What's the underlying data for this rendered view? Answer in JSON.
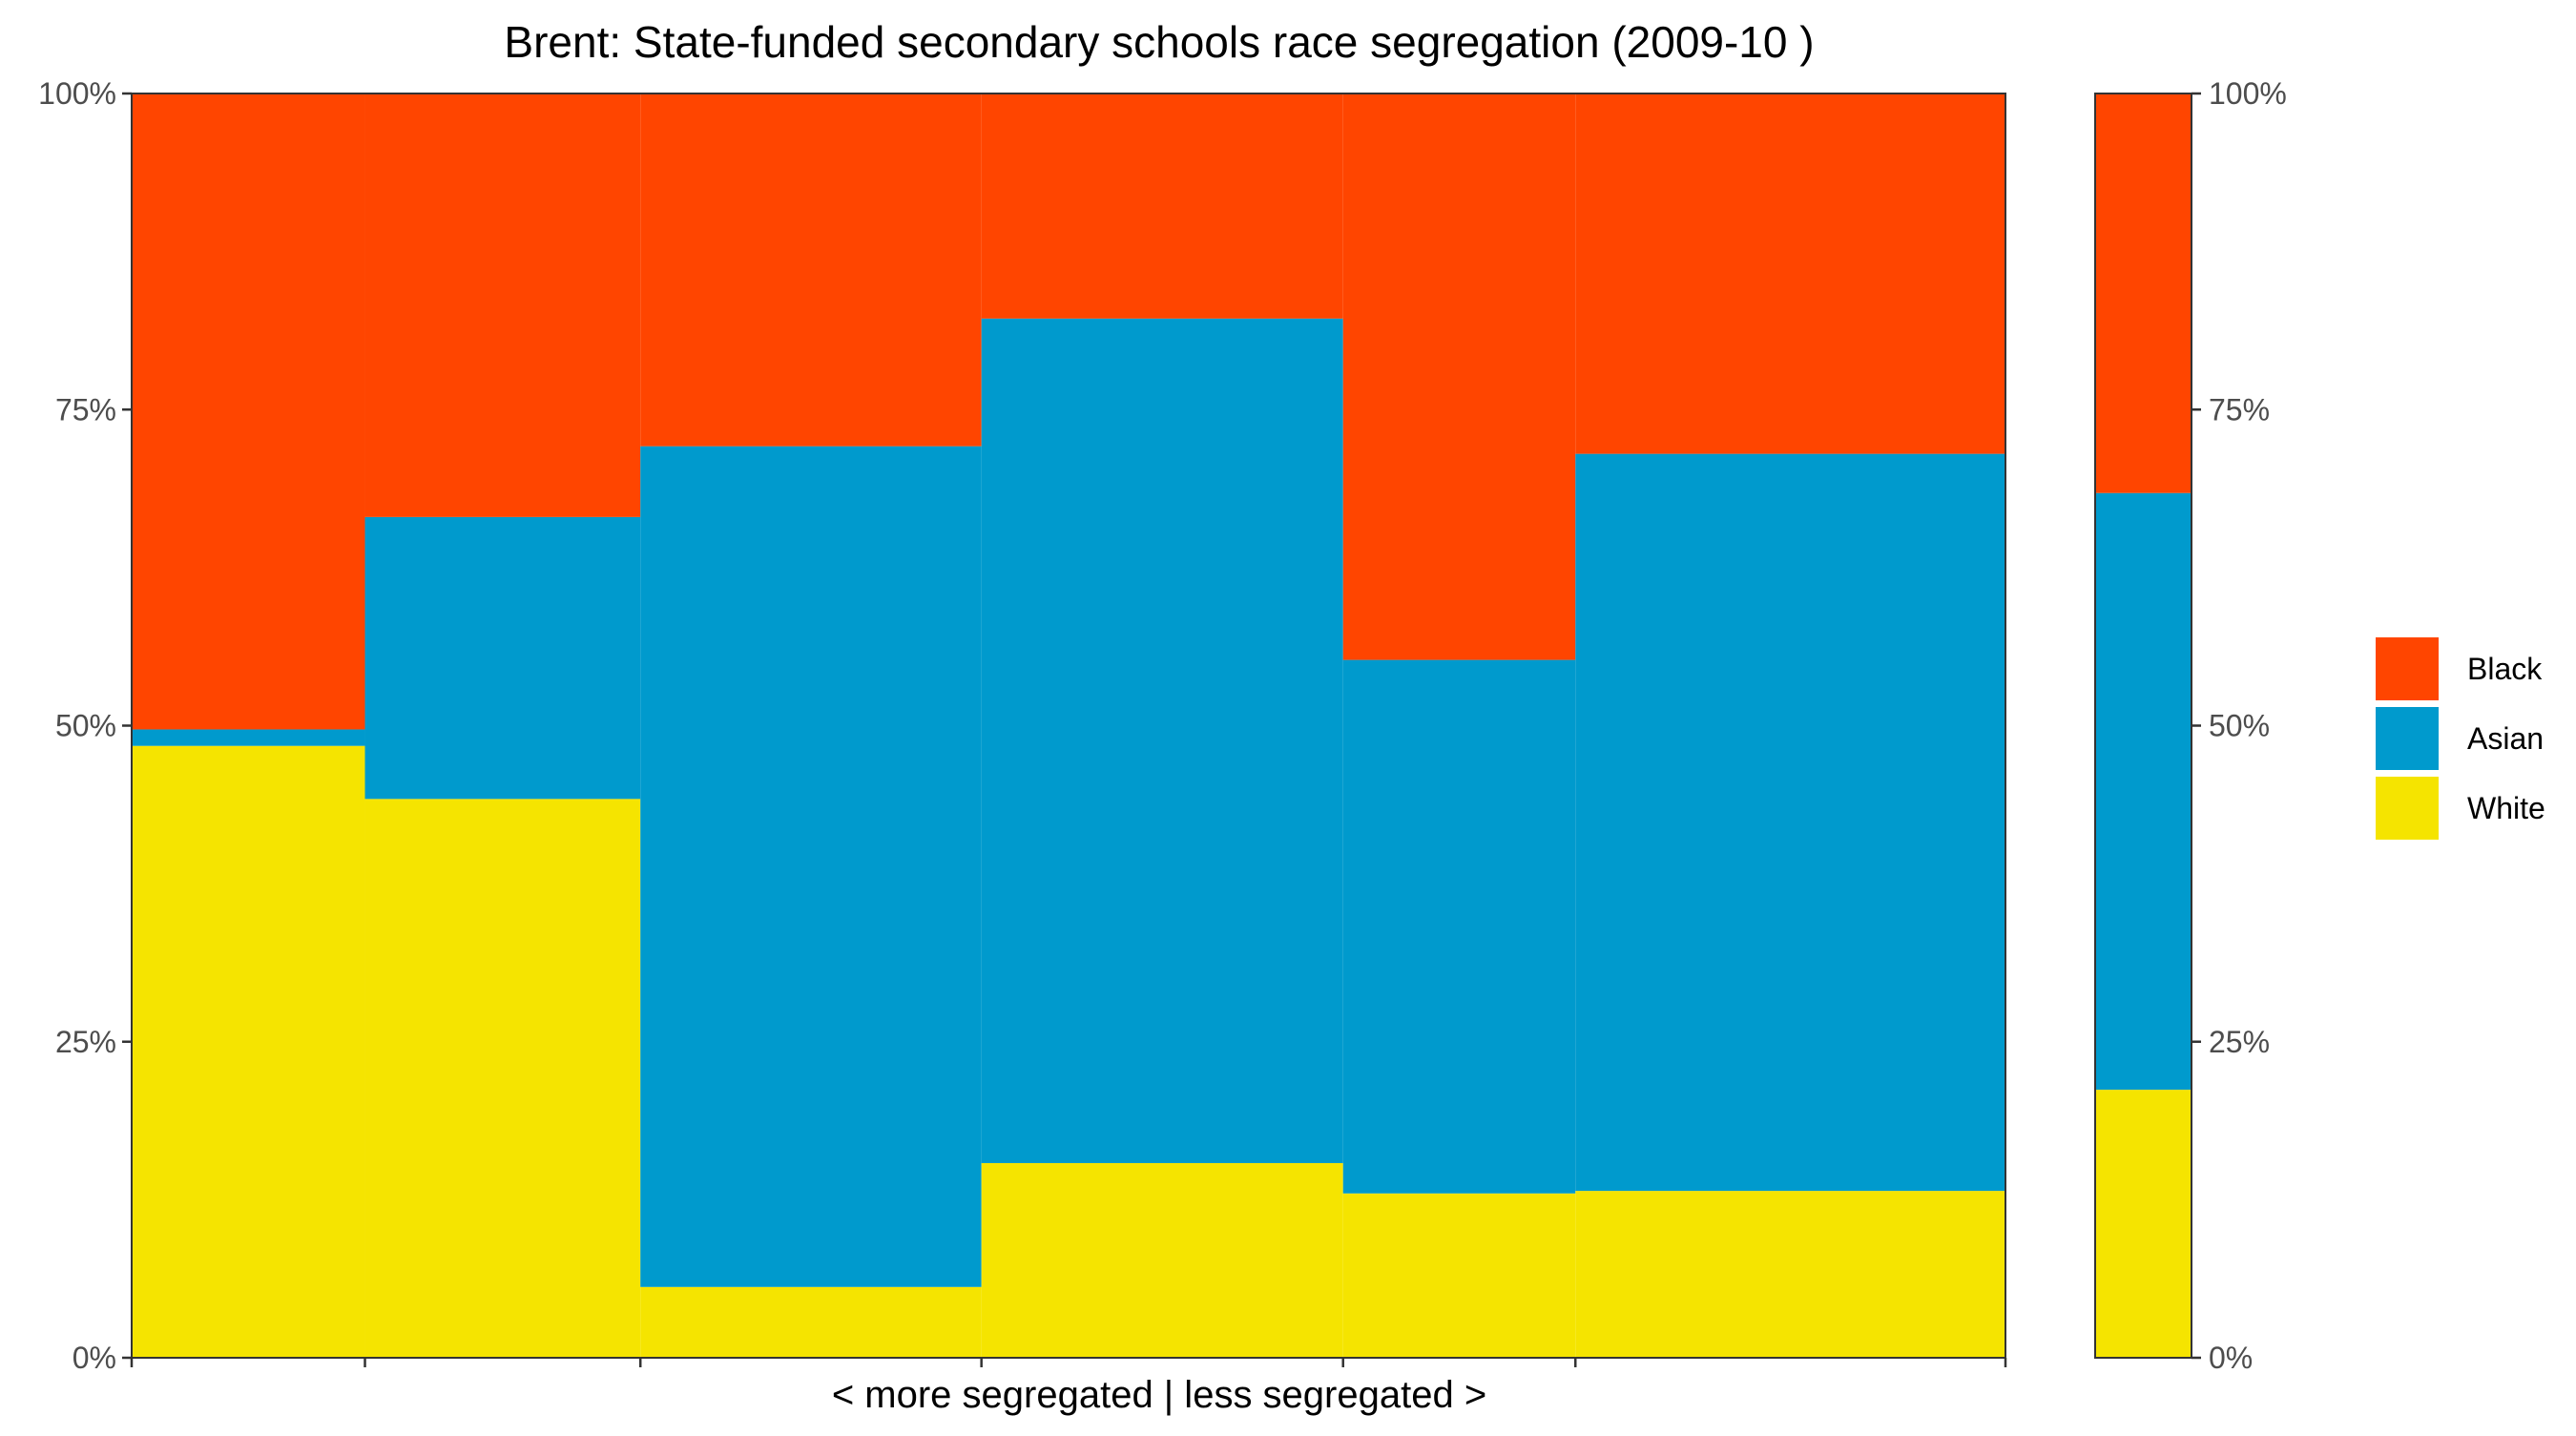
{
  "chart_data": {
    "type": "bar",
    "subtype": "stacked-proportional-variable-width",
    "title": "Brent: State-funded secondary schools race segregation (2009-10 )",
    "xlabel": "< more segregated | less segregated >",
    "ylabel": "",
    "ylim": [
      0,
      1
    ],
    "y_ticks": [
      "0%",
      "25%",
      "50%",
      "75%",
      "100%"
    ],
    "y_tick_values": [
      0,
      0.25,
      0.5,
      0.75,
      1
    ],
    "grid": false,
    "legend_position": "right",
    "legend": [
      {
        "name": "Black",
        "color": "#FF4500"
      },
      {
        "name": "Asian",
        "color": "#009ACD"
      },
      {
        "name": "White",
        "color": "#F5E400"
      }
    ],
    "series_order_bottom_to_top": [
      "White",
      "Asian",
      "Black"
    ],
    "x_boundaries": [
      0,
      0.1245,
      0.2715,
      0.4535,
      0.6465,
      0.7705,
      1.0
    ],
    "bars": [
      {
        "White": 0.484,
        "Asian": 0.013,
        "Black": 0.503
      },
      {
        "White": 0.442,
        "Asian": 0.223,
        "Black": 0.335
      },
      {
        "White": 0.056,
        "Asian": 0.665,
        "Black": 0.279
      },
      {
        "White": 0.154,
        "Asian": 0.668,
        "Black": 0.178
      },
      {
        "White": 0.13,
        "Asian": 0.422,
        "Black": 0.448
      },
      {
        "White": 0.132,
        "Asian": 0.583,
        "Black": 0.285
      }
    ],
    "overall": {
      "White": 0.212,
      "Asian": 0.472,
      "Black": 0.316
    }
  }
}
